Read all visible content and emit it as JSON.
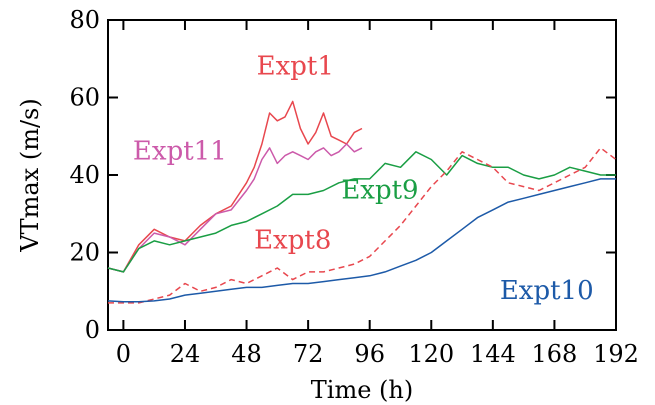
{
  "chart_data": {
    "type": "line",
    "xlabel": "Time (h)",
    "ylabel": "VTmax (m/s)",
    "xlim": [
      -6,
      192
    ],
    "ylim": [
      0,
      80
    ],
    "xticks": [
      0,
      24,
      48,
      72,
      96,
      120,
      144,
      168,
      192
    ],
    "yticks": [
      0,
      20,
      40,
      60,
      80
    ],
    "grid": false,
    "series": [
      {
        "name": "Expt1",
        "color": "#e8474e",
        "dash": "solid",
        "x": [
          -6,
          0,
          6,
          12,
          18,
          24,
          30,
          36,
          42,
          48,
          51,
          54,
          57,
          60,
          63,
          66,
          69,
          72,
          75,
          78,
          81,
          84,
          87,
          90,
          93
        ],
        "y": [
          16,
          15,
          22,
          26,
          24,
          23,
          27,
          30,
          32,
          38,
          42,
          48,
          56,
          54,
          55,
          59,
          52,
          48,
          51,
          56,
          50,
          49,
          48,
          51,
          52
        ]
      },
      {
        "name": "Expt11",
        "color": "#cc5aaa",
        "dash": "solid",
        "x": [
          -6,
          0,
          6,
          12,
          18,
          24,
          30,
          36,
          42,
          48,
          51,
          54,
          57,
          60,
          63,
          66,
          69,
          72,
          75,
          78,
          81,
          84,
          87,
          90,
          93
        ],
        "y": [
          16,
          15,
          21,
          25,
          24,
          22,
          26,
          30,
          31,
          36,
          39,
          44,
          47,
          43,
          45,
          46,
          45,
          44,
          46,
          47,
          45,
          46,
          48,
          46,
          47
        ]
      },
      {
        "name": "Expt9",
        "color": "#1a9e44",
        "dash": "solid",
        "x": [
          -6,
          0,
          6,
          12,
          18,
          24,
          30,
          36,
          42,
          48,
          54,
          60,
          66,
          72,
          78,
          84,
          90,
          96,
          102,
          108,
          114,
          120,
          126,
          132,
          138,
          144,
          150,
          156,
          162,
          168,
          174,
          180,
          186,
          192
        ],
        "y": [
          16,
          15,
          21,
          23,
          22,
          23,
          24,
          25,
          27,
          28,
          30,
          32,
          35,
          35,
          36,
          38,
          39,
          39,
          43,
          42,
          46,
          44,
          40,
          45,
          43,
          42,
          42,
          40,
          39,
          40,
          42,
          41,
          40,
          40
        ]
      },
      {
        "name": "Expt8",
        "color": "#e8474e",
        "dash": "dashed",
        "x": [
          -6,
          0,
          6,
          12,
          18,
          24,
          30,
          36,
          42,
          48,
          54,
          60,
          66,
          72,
          78,
          84,
          90,
          96,
          102,
          108,
          114,
          120,
          126,
          132,
          138,
          144,
          150,
          156,
          162,
          168,
          174,
          180,
          186,
          192
        ],
        "y": [
          7,
          7,
          7,
          8,
          9,
          12,
          10,
          11,
          13,
          12,
          14,
          16,
          13,
          15,
          15,
          16,
          17,
          19,
          23,
          27,
          32,
          37,
          41,
          46,
          44,
          42,
          38,
          37,
          36,
          38,
          40,
          42,
          47,
          44
        ]
      },
      {
        "name": "Expt10",
        "color": "#1d5aa8",
        "dash": "solid",
        "x": [
          -6,
          0,
          6,
          12,
          18,
          24,
          30,
          36,
          42,
          48,
          54,
          60,
          66,
          72,
          78,
          84,
          90,
          96,
          102,
          108,
          114,
          120,
          126,
          132,
          138,
          144,
          150,
          156,
          162,
          168,
          174,
          180,
          186,
          192
        ],
        "y": [
          7.5,
          7.3,
          7.3,
          7.5,
          8,
          9,
          9.5,
          10,
          10.5,
          11,
          11,
          11.5,
          12,
          12,
          12.5,
          13,
          13.5,
          14,
          15,
          16.5,
          18,
          20,
          23,
          26,
          29,
          31,
          33,
          34,
          35,
          36,
          37,
          38,
          39,
          39
        ]
      }
    ],
    "annotations": [
      {
        "text": "Expt1",
        "color": "#e8474e",
        "x": 67,
        "y": 66
      },
      {
        "text": "Expt11",
        "color": "#cc5aaa",
        "x": 22,
        "y": 44
      },
      {
        "text": "Expt9",
        "color": "#1a9e44",
        "x": 100,
        "y": 34
      },
      {
        "text": "Expt8",
        "color": "#e8474e",
        "x": 66,
        "y": 21
      },
      {
        "text": "Expt10",
        "color": "#1d5aa8",
        "x": 165,
        "y": 8
      }
    ]
  }
}
